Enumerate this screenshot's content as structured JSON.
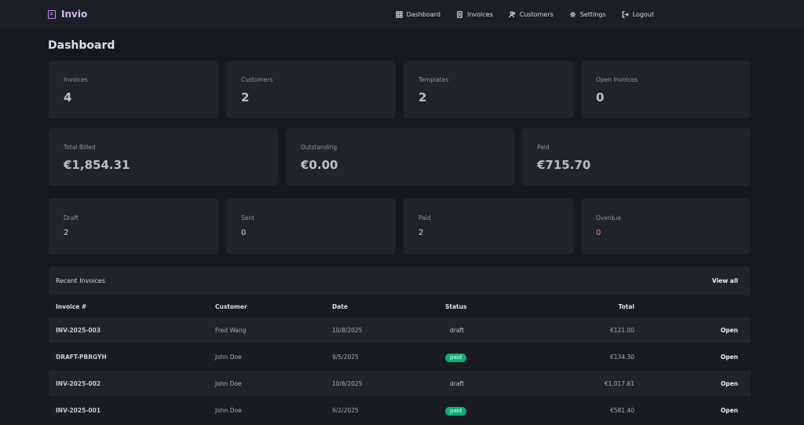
{
  "app": {
    "title": "Invio"
  },
  "nav": [
    {
      "label": "Dashboard"
    },
    {
      "label": "Invoices"
    },
    {
      "label": "Customers"
    },
    {
      "label": "Settings"
    },
    {
      "label": "Logout"
    }
  ],
  "page_title": "Dashboard",
  "stats_top": [
    {
      "label": "Invoices",
      "value": "4"
    },
    {
      "label": "Customers",
      "value": "2"
    },
    {
      "label": "Templates",
      "value": "2"
    },
    {
      "label": "Open Invoices",
      "value": "0"
    }
  ],
  "stats_money": [
    {
      "label": "Total Billed",
      "value": "€1,854.31"
    },
    {
      "label": "Outstanding",
      "value": "€0.00"
    },
    {
      "label": "Paid",
      "value": "€715.70"
    }
  ],
  "stats_status": [
    {
      "label": "Draft",
      "value": "2"
    },
    {
      "label": "Sent",
      "value": "0"
    },
    {
      "label": "Paid",
      "value": "2"
    },
    {
      "label": "Overdue",
      "value": "0"
    }
  ],
  "recent": {
    "title": "Recent Invoices",
    "view_all": "View all",
    "columns": [
      "Invoice #",
      "Customer",
      "Date",
      "Status",
      "Total"
    ],
    "rows": [
      {
        "invoice": "INV-2025-003",
        "customer": "Fred Wang",
        "date": "10/8/2025",
        "status": "draft",
        "total": "€121.00",
        "action": "Open"
      },
      {
        "invoice": "DRAFT-PBRGYH",
        "customer": "John Doe",
        "date": "9/5/2025",
        "status": "paid",
        "total": "€134.30",
        "action": "Open"
      },
      {
        "invoice": "INV-2025-002",
        "customer": "John Doe",
        "date": "10/6/2025",
        "status": "draft",
        "total": "€1,017.61",
        "action": "Open"
      },
      {
        "invoice": "INV-2025-001",
        "customer": "John Doe",
        "date": "9/2/2025",
        "status": "paid",
        "total": "€581.40",
        "action": "Open"
      }
    ]
  },
  "colors": {
    "accent": "#c98ef5",
    "paid_badge": "#0ead74",
    "overdue": "#f07a83"
  }
}
